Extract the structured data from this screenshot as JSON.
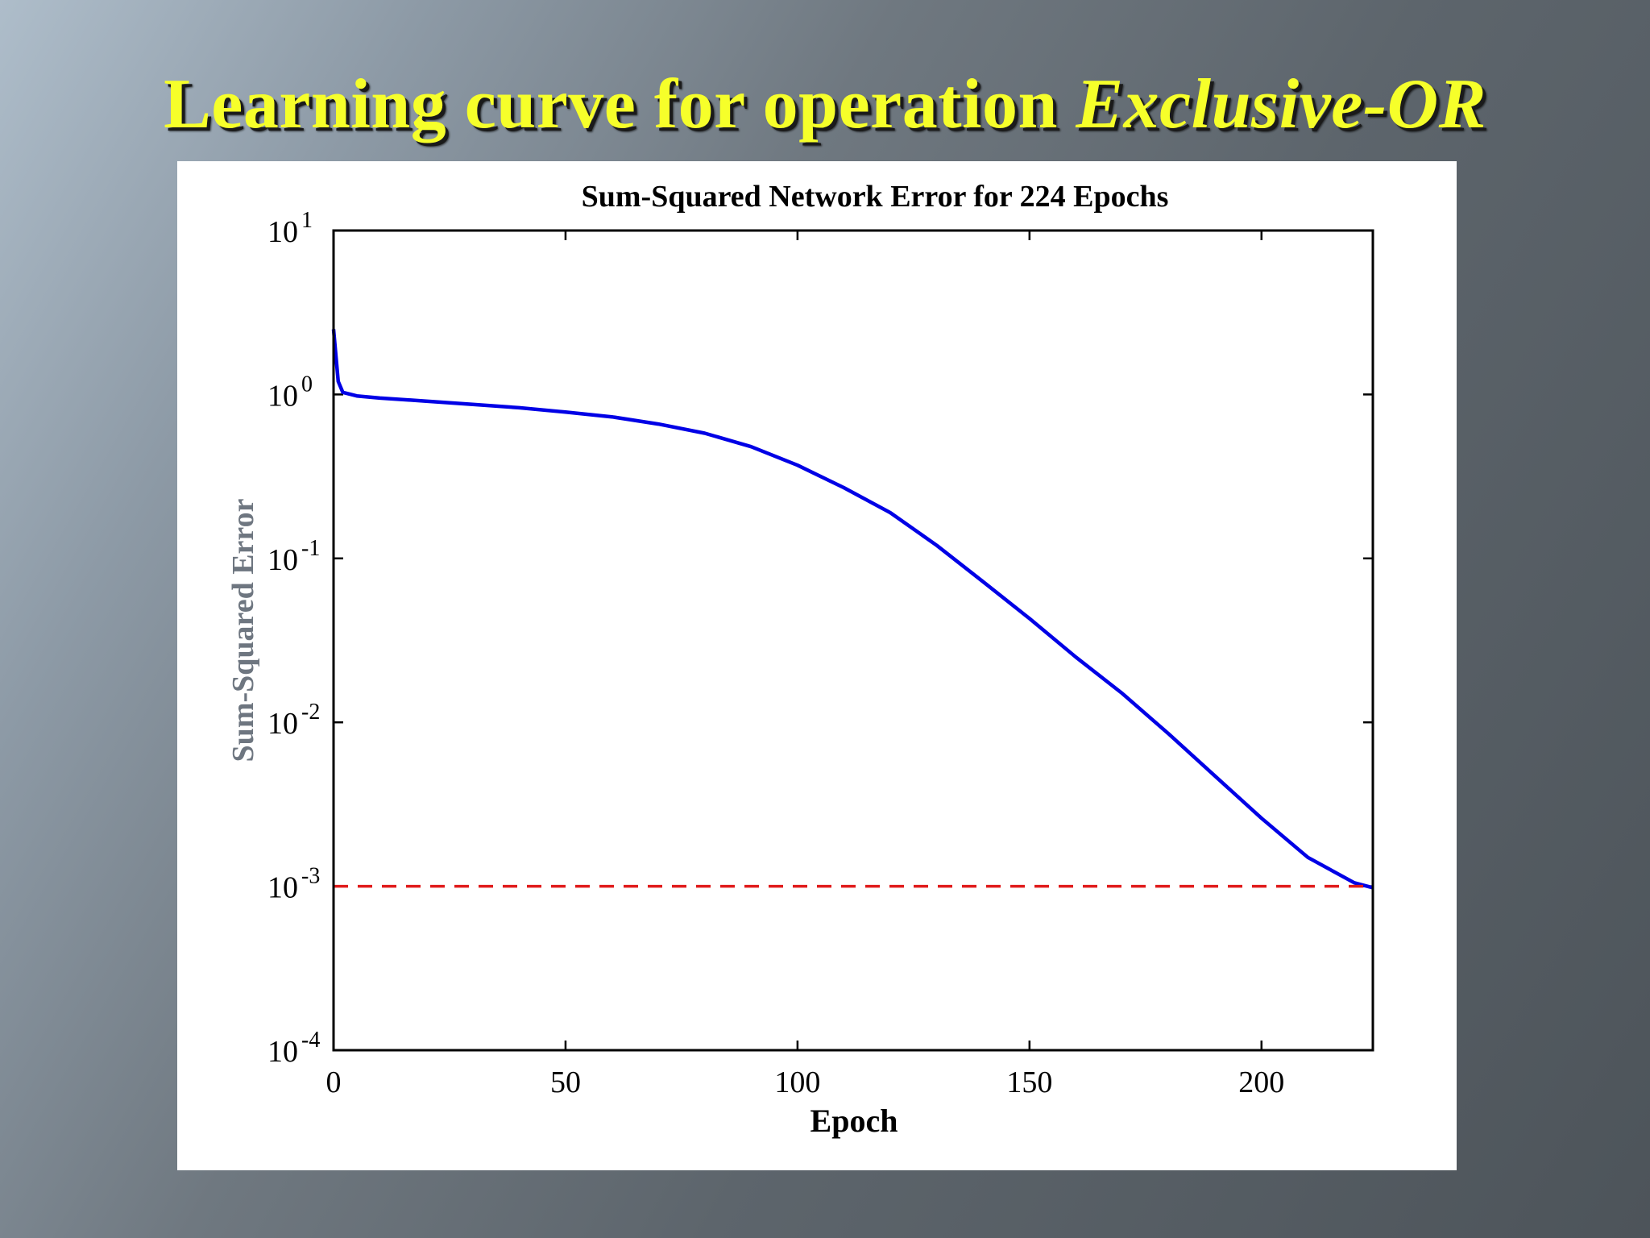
{
  "slide": {
    "title_main": "Learning curve for operation ",
    "title_italic": "Exclusive-OR"
  },
  "chart_data": {
    "type": "line",
    "title": "Sum-Squared Network Error for 224 Epochs",
    "xlabel": "Epoch",
    "ylabel": "Sum-Squared Error",
    "xlim": [
      0,
      224
    ],
    "ylim": [
      0.0001,
      10
    ],
    "yscale": "log",
    "grid": false,
    "x_ticks": [
      "0",
      "50",
      "100",
      "150",
      "200"
    ],
    "x_tick_values": [
      0,
      50,
      100,
      150,
      200
    ],
    "y_ticks": [
      {
        "base": "10",
        "exp": "1",
        "value": 10
      },
      {
        "base": "10",
        "exp": "0",
        "value": 1
      },
      {
        "base": "10",
        "exp": "-1",
        "value": 0.1
      },
      {
        "base": "10",
        "exp": "-2",
        "value": 0.01
      },
      {
        "base": "10",
        "exp": "-3",
        "value": 0.001
      },
      {
        "base": "10",
        "exp": "-4",
        "value": 0.0001
      }
    ],
    "series": [
      {
        "color": "#0000e6",
        "style": "solid",
        "x": [
          0,
          1,
          2,
          5,
          10,
          20,
          30,
          40,
          50,
          60,
          70,
          80,
          90,
          100,
          110,
          120,
          130,
          140,
          150,
          160,
          170,
          180,
          190,
          200,
          210,
          220,
          224
        ],
        "y": [
          2.5,
          1.2,
          1.03,
          0.98,
          0.95,
          0.91,
          0.87,
          0.83,
          0.78,
          0.73,
          0.66,
          0.58,
          0.48,
          0.37,
          0.27,
          0.19,
          0.12,
          0.072,
          0.043,
          0.025,
          0.015,
          0.0085,
          0.0047,
          0.0026,
          0.0015,
          0.00105,
          0.00098
        ]
      },
      {
        "color": "#e01b1b",
        "style": "dashed",
        "x": [
          0,
          224
        ],
        "y": [
          0.001,
          0.001
        ]
      }
    ]
  }
}
